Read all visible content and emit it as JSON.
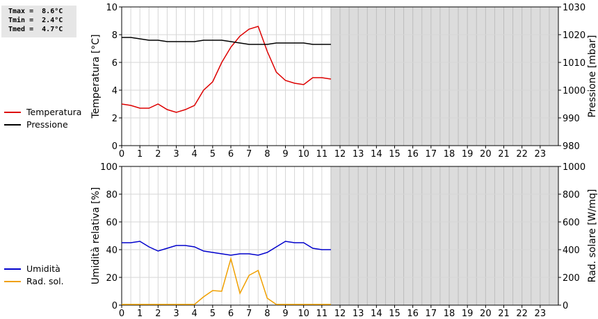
{
  "stats": {
    "tmax": "Tmax =  8.6°C",
    "tmin": "Tmin =  2.4°C",
    "tmed": "Tmed =  4.7°C"
  },
  "chart_data": [
    {
      "type": "line",
      "x_ticks": [
        0,
        1,
        2,
        3,
        4,
        5,
        6,
        7,
        8,
        9,
        10,
        11,
        12,
        13,
        14,
        15,
        16,
        17,
        18,
        19,
        20,
        21,
        22,
        23
      ],
      "xlim": [
        0,
        24
      ],
      "shaded_from": 11.5,
      "ylabel": "Temperatura [°C]",
      "ylim": [
        0,
        10
      ],
      "y_ticks": [
        0,
        2,
        4,
        6,
        8,
        10
      ],
      "y2label": "Pressione [mbar]",
      "y2lim": [
        980,
        1030
      ],
      "y2_ticks": [
        980,
        990,
        1000,
        1010,
        1020,
        1030
      ],
      "grid": true,
      "legend_position": "left",
      "series": [
        {
          "name": "Temperatura",
          "color": "#dd0000",
          "axis": "left",
          "x": [
            0,
            0.5,
            1,
            1.5,
            2,
            2.5,
            3,
            3.5,
            4,
            4.5,
            5,
            5.5,
            6,
            6.5,
            7,
            7.5,
            8,
            8.5,
            9,
            9.5,
            10,
            10.5,
            11,
            11.5
          ],
          "values": [
            3.0,
            2.9,
            2.7,
            2.7,
            3.0,
            2.6,
            2.4,
            2.6,
            2.9,
            4.0,
            4.6,
            6.0,
            7.1,
            7.9,
            8.4,
            8.6,
            6.8,
            5.3,
            4.7,
            4.5,
            4.4,
            4.9,
            4.9,
            4.8
          ]
        },
        {
          "name": "Pressione",
          "color": "#000000",
          "axis": "right",
          "x": [
            0,
            0.5,
            1,
            1.5,
            2,
            2.5,
            3,
            3.5,
            4,
            4.5,
            5,
            5.5,
            6,
            6.5,
            7,
            7.5,
            8,
            8.5,
            9,
            9.5,
            10,
            10.5,
            11,
            11.5
          ],
          "values": [
            1019,
            1019,
            1018.5,
            1018,
            1018,
            1017.5,
            1017.5,
            1017.5,
            1017.5,
            1018,
            1018,
            1018,
            1017.5,
            1017,
            1016.5,
            1016.5,
            1016.5,
            1017,
            1017,
            1017,
            1017,
            1016.5,
            1016.5,
            1016.5
          ]
        }
      ]
    },
    {
      "type": "line",
      "x_ticks": [
        0,
        1,
        2,
        3,
        4,
        5,
        6,
        7,
        8,
        9,
        10,
        11,
        12,
        13,
        14,
        15,
        16,
        17,
        18,
        19,
        20,
        21,
        22,
        23
      ],
      "xlim": [
        0,
        24
      ],
      "shaded_from": 11.5,
      "ylabel": "Umidità relativa [%]",
      "ylim": [
        0,
        100
      ],
      "y_ticks": [
        0,
        20,
        40,
        60,
        80,
        100
      ],
      "y2label": "Rad. solare [W/mq]",
      "y2lim": [
        0,
        1000
      ],
      "y2_ticks": [
        0,
        200,
        400,
        600,
        800,
        1000
      ],
      "grid": true,
      "legend_position": "left",
      "series": [
        {
          "name": "Umidità",
          "color": "#0000cc",
          "axis": "left",
          "x": [
            0,
            0.5,
            1,
            1.5,
            2,
            2.5,
            3,
            3.5,
            4,
            4.5,
            5,
            5.5,
            6,
            6.5,
            7,
            7.5,
            8,
            8.5,
            9,
            9.5,
            10,
            10.5,
            11,
            11.5
          ],
          "values": [
            45,
            45,
            46,
            42,
            39,
            41,
            43,
            43,
            42,
            39,
            38,
            37,
            36,
            37,
            37,
            36,
            38,
            42,
            46,
            45,
            45,
            41,
            40,
            40
          ]
        },
        {
          "name": "Rad. sol.",
          "color": "#f0a000",
          "axis": "right",
          "x": [
            0,
            0.5,
            1,
            1.5,
            2,
            2.5,
            3,
            3.5,
            4,
            4.5,
            5,
            5.5,
            6,
            6.5,
            7,
            7.5,
            8,
            8.5,
            9,
            9.5,
            10,
            10.5,
            11,
            11.5
          ],
          "values": [
            5,
            5,
            5,
            5,
            5,
            5,
            5,
            5,
            5,
            60,
            105,
            100,
            335,
            85,
            215,
            250,
            50,
            5,
            5,
            5,
            5,
            5,
            5,
            5
          ]
        }
      ]
    }
  ]
}
